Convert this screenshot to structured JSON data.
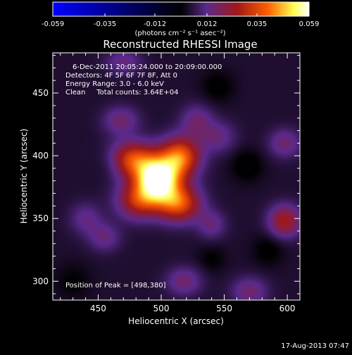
{
  "chart_data": {
    "type": "heatmap",
    "title": "Reconstructed RHESSI Image",
    "xlabel": "Heliocentric X (arcsec)",
    "ylabel": "Heliocentric Y (arcsec)",
    "xlim": [
      414,
      610
    ],
    "ylim": [
      285,
      482
    ],
    "x_ticks": [
      450,
      500,
      550,
      600
    ],
    "y_ticks": [
      300,
      350,
      400,
      450
    ],
    "colorbar": {
      "range": [
        -0.059,
        0.059
      ],
      "ticks": [
        "-0.059",
        "-0.035",
        "-0.012",
        "0.012",
        "0.035",
        "0.059"
      ],
      "ticklabel_values": [
        -0.059,
        -0.035,
        -0.012,
        0.012,
        0.035,
        0.059
      ],
      "unit_label": "(photons cm⁻² s⁻¹ asec⁻²)",
      "stops": [
        "#0000ff",
        "#000000",
        "#5a2a8c",
        "#a01818",
        "#ff6000",
        "#ffff50",
        "#ffffff"
      ]
    },
    "annotations": [
      "6-Dec-2011 20:05:24.000 to 20:09:00.000",
      "Detectors: 4F 5F 6F 7F 8F, Att 0",
      "Energy Range: 3.0 - 6.0 keV",
      "Clean     Total counts: 3.64E+04"
    ],
    "peak_label": "Position of Peak = [498,380]",
    "peak": [
      498,
      380
    ],
    "background_level": 0.004,
    "sources": [
      {
        "x": 497,
        "y": 381,
        "sx": 12,
        "sy": 12,
        "amp": 0.059
      },
      {
        "x": 477,
        "y": 397,
        "sx": 13,
        "sy": 10,
        "amp": 0.03
      },
      {
        "x": 515,
        "y": 399,
        "sx": 11,
        "sy": 11,
        "amp": 0.035
      },
      {
        "x": 482,
        "y": 364,
        "sx": 12,
        "sy": 10,
        "amp": 0.024
      },
      {
        "x": 514,
        "y": 362,
        "sx": 12,
        "sy": 10,
        "amp": 0.032
      },
      {
        "x": 468,
        "y": 428,
        "sx": 10,
        "sy": 8,
        "amp": 0.012
      },
      {
        "x": 528,
        "y": 428,
        "sx": 9,
        "sy": 9,
        "amp": 0.011
      },
      {
        "x": 545,
        "y": 415,
        "sx": 10,
        "sy": 9,
        "amp": 0.01
      },
      {
        "x": 455,
        "y": 335,
        "sx": 9,
        "sy": 8,
        "amp": 0.01
      },
      {
        "x": 440,
        "y": 350,
        "sx": 9,
        "sy": 9,
        "amp": 0.009
      },
      {
        "x": 598,
        "y": 348,
        "sx": 9,
        "sy": 9,
        "amp": 0.022
      },
      {
        "x": 598,
        "y": 410,
        "sx": 9,
        "sy": 8,
        "amp": 0.012
      },
      {
        "x": 518,
        "y": 300,
        "sx": 10,
        "sy": 8,
        "amp": 0.012
      },
      {
        "x": 570,
        "y": 292,
        "sx": 10,
        "sy": 8,
        "amp": 0.012
      },
      {
        "x": 470,
        "y": 475,
        "sx": 10,
        "sy": 7,
        "amp": 0.01
      },
      {
        "x": 540,
        "y": 345,
        "sx": 8,
        "sy": 8,
        "amp": 0.01
      },
      {
        "x": 568,
        "y": 392,
        "sx": 9,
        "sy": 9,
        "amp": -0.006
      },
      {
        "x": 460,
        "y": 395,
        "sx": 9,
        "sy": 9,
        "amp": -0.005
      },
      {
        "x": 545,
        "y": 455,
        "sx": 9,
        "sy": 9,
        "amp": -0.005
      },
      {
        "x": 585,
        "y": 325,
        "sx": 9,
        "sy": 9,
        "amp": -0.005
      },
      {
        "x": 430,
        "y": 300,
        "sx": 10,
        "sy": 10,
        "amp": -0.004
      },
      {
        "x": 540,
        "y": 318,
        "sx": 8,
        "sy": 8,
        "amp": -0.004
      }
    ]
  },
  "footer": {
    "timestamp": "17-Aug-2013 07:47"
  }
}
